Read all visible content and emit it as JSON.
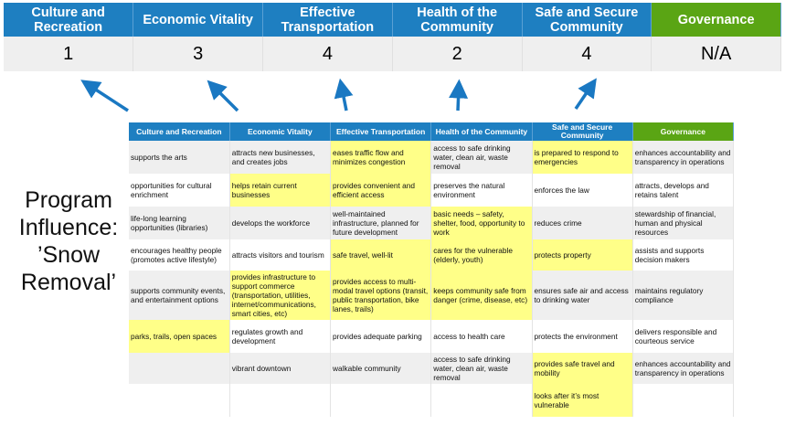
{
  "top": {
    "headers": [
      "Culture and Recreation",
      "Economic Vitality",
      "Effective Transportation",
      "Health of the Community",
      "Safe and Secure Community",
      "Governance"
    ],
    "scores": [
      "1",
      "3",
      "4",
      "2",
      "4",
      "N/A"
    ]
  },
  "side_label": "Program Influence: ’Snow Removal’",
  "colors": {
    "header_blue": "#1e7fc1",
    "governance_green": "#5aa514",
    "highlight": "#ffff88",
    "arrow": "#1a78c2"
  },
  "table": {
    "headers": [
      "Culture and Recreation",
      "Economic Vitality",
      "Effective Transportation",
      "Health of the Community",
      "Safe and Secure Community",
      "Governance"
    ],
    "rows": [
      {
        "cells": [
          "supports the arts",
          "attracts new businesses, and creates jobs",
          "eases traffic flow and minimizes congestion",
          "access to safe drinking water, clean air, waste removal",
          "is prepared to respond to emergencies",
          "enhances accountability and transparency in operations"
        ],
        "highlighted": [
          false,
          false,
          true,
          false,
          true,
          false
        ]
      },
      {
        "cells": [
          "opportunities for cultural enrichment",
          "helps retain current businesses",
          "provides convenient and efficient access",
          "preserves the natural environment",
          "enforces the law",
          "attracts, develops and retains talent"
        ],
        "highlighted": [
          false,
          true,
          true,
          false,
          false,
          false
        ]
      },
      {
        "cells": [
          "life-long learning opportunities (libraries)",
          "develops the workforce",
          "well-maintained infrastructure, planned for future development",
          "basic needs – safety, shelter, food, opportunity to work",
          "reduces crime",
          "stewardship of financial, human and physical resources"
        ],
        "highlighted": [
          false,
          false,
          false,
          true,
          false,
          false
        ]
      },
      {
        "cells": [
          "encourages healthy people (promotes active lifestyle)",
          "attracts visitors and tourism",
          "safe travel, well-lit",
          "cares for the vulnerable (elderly, youth)",
          "protects property",
          "assists and supports decision makers"
        ],
        "highlighted": [
          false,
          false,
          true,
          true,
          true,
          false
        ]
      },
      {
        "cells": [
          "supports community events, and entertainment options",
          "provides infrastructure to support commerce (transportation, utilities, internet/communications, smart cities, etc)",
          "provides access to multi-modal travel options (transit, public transportation, bike lanes, trails)",
          "keeps community safe from danger (crime, disease, etc)",
          "ensures safe air and access to drinking water",
          "maintains regulatory compliance"
        ],
        "highlighted": [
          false,
          true,
          true,
          true,
          false,
          false
        ]
      },
      {
        "cells": [
          "parks, trails, open spaces",
          "regulates growth and development",
          "provides adequate parking",
          "access to health care",
          "protects the environment",
          "delivers responsible and courteous service"
        ],
        "highlighted": [
          true,
          false,
          false,
          false,
          false,
          false
        ]
      },
      {
        "cells": [
          "",
          "vibrant downtown",
          "walkable community",
          "access to safe drinking water, clean air, waste removal",
          "provides safe travel and mobility",
          "enhances accountability and transparency in operations"
        ],
        "highlighted": [
          false,
          false,
          false,
          false,
          true,
          false
        ]
      },
      {
        "cells": [
          "",
          "",
          "",
          "",
          "looks after it’s most vulnerable",
          ""
        ],
        "highlighted": [
          false,
          false,
          false,
          false,
          true,
          false
        ]
      }
    ]
  }
}
